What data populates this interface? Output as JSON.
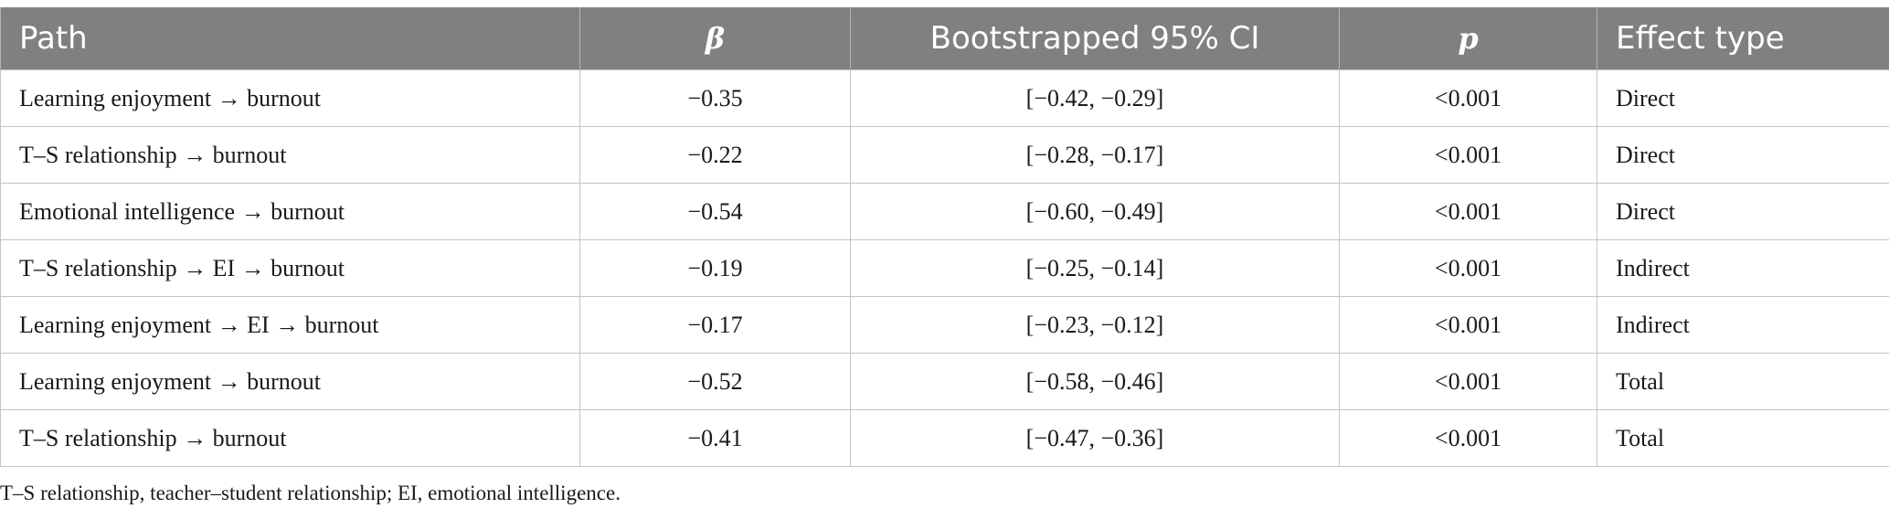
{
  "table": {
    "headers": {
      "path": "Path",
      "beta": "β",
      "ci": "Bootstrapped 95% CI",
      "p": "p",
      "effect_type": "Effect type"
    },
    "rows": [
      {
        "path": "Learning enjoyment → burnout",
        "beta": "−0.35",
        "ci": "[−0.42, −0.29]",
        "p": "<0.001",
        "effect_type": "Direct"
      },
      {
        "path": "T–S relationship → burnout",
        "beta": "−0.22",
        "ci": "[−0.28, −0.17]",
        "p": "<0.001",
        "effect_type": "Direct"
      },
      {
        "path": "Emotional intelligence → burnout",
        "beta": "−0.54",
        "ci": "[−0.60, −0.49]",
        "p": "<0.001",
        "effect_type": "Direct"
      },
      {
        "path": "T–S relationship → EI → burnout",
        "beta": "−0.19",
        "ci": "[−0.25, −0.14]",
        "p": "<0.001",
        "effect_type": "Indirect"
      },
      {
        "path": "Learning enjoyment → EI → burnout",
        "beta": "−0.17",
        "ci": "[−0.23, −0.12]",
        "p": "<0.001",
        "effect_type": "Indirect"
      },
      {
        "path": "Learning enjoyment → burnout",
        "beta": "−0.52",
        "ci": "[−0.58, −0.46]",
        "p": "<0.001",
        "effect_type": "Total"
      },
      {
        "path": "T–S relationship → burnout",
        "beta": "−0.41",
        "ci": "[−0.47, −0.36]",
        "p": "<0.001",
        "effect_type": "Total"
      }
    ]
  },
  "footnote": "T–S relationship, teacher–student relationship; EI, emotional intelligence.",
  "colors": {
    "header_bg": "#808080",
    "header_text": "#ffffff",
    "border": "#c4c4c4",
    "body_text": "#1a1a1a"
  }
}
